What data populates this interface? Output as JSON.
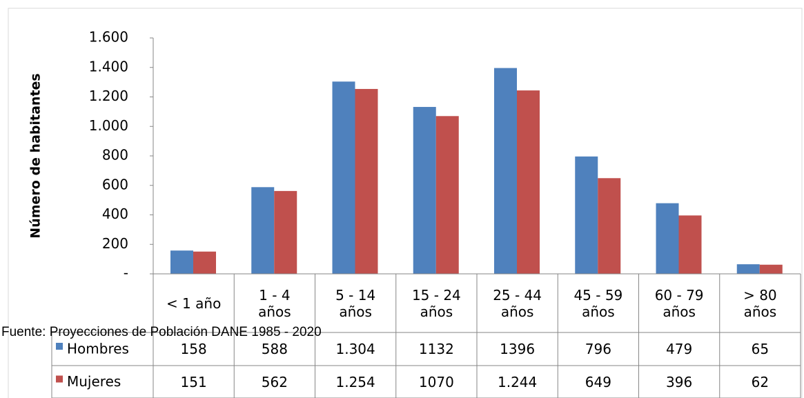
{
  "chart_data": {
    "type": "bar",
    "y_label": "Número de habitantes",
    "source": "Fuente: Proyecciones de Población DANE 1985 - 2020",
    "categories": [
      "< 1 año",
      "1 - 4 años",
      "5 - 14 años",
      "15 - 24 años",
      "25 - 44 años",
      "45 - 59 años",
      "60 - 79 años",
      "> 80 años"
    ],
    "series": [
      {
        "name": "Hombres",
        "color": "#4f81bd",
        "values": [
          158,
          588,
          1304,
          1132,
          1396,
          796,
          479,
          65
        ],
        "value_labels": [
          "158",
          "588",
          "1.304",
          "1132",
          "1396",
          "796",
          "479",
          "65"
        ]
      },
      {
        "name": "Mujeres",
        "color": "#c0504d",
        "values": [
          151,
          562,
          1254,
          1070,
          1244,
          649,
          396,
          62
        ],
        "value_labels": [
          "151",
          "562",
          "1.254",
          "1070",
          "1.244",
          "649",
          "396",
          "62"
        ]
      }
    ],
    "ylim": [
      0,
      1600
    ],
    "yticks": [
      {
        "value": 0,
        "label": "-"
      },
      200,
      400,
      600,
      800,
      {
        "value": 1000,
        "label": "1.000"
      },
      {
        "value": 1200,
        "label": "1.200"
      },
      {
        "value": 1400,
        "label": "1.400"
      },
      {
        "value": 1600,
        "label": "1.600"
      }
    ],
    "grid": false
  }
}
